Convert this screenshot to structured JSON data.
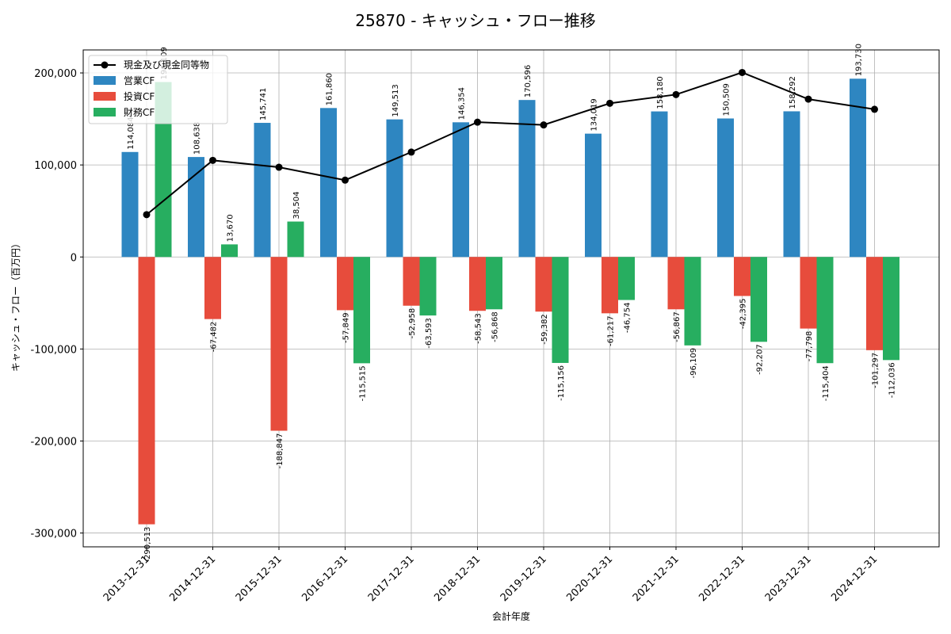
{
  "chart_data": {
    "type": "bar",
    "title": "25870 - キャッシュ・フロー推移",
    "xlabel": "会計年度",
    "ylabel": "キャッシュ・フロー（百万円）",
    "ylim": [
      -315000,
      225000
    ],
    "yticks": [
      -300000,
      -200000,
      -100000,
      0,
      100000,
      200000
    ],
    "ytick_labels": [
      "-300,000",
      "-200,000",
      "-100,000",
      "0",
      "100,000",
      "200,000"
    ],
    "grid": true,
    "legend_position": "top-left",
    "categories": [
      "2013-12-31",
      "2014-12-31",
      "2015-12-31",
      "2016-12-31",
      "2017-12-31",
      "2018-12-31",
      "2019-12-31",
      "2020-12-31",
      "2021-12-31",
      "2022-12-31",
      "2023-12-31",
      "2024-12-31"
    ],
    "series": [
      {
        "name": "営業CF",
        "kind": "bar",
        "color": "#2e86c1",
        "values": [
          114084,
          108638,
          145741,
          161860,
          149513,
          146354,
          170596,
          134019,
          158180,
          150509,
          158292,
          193730
        ],
        "labels": [
          "114,084",
          "108,638",
          "145,741",
          "161,860",
          "149,513",
          "146,354",
          "170,596",
          "134,019",
          "158,180",
          "150,509",
          "158,292",
          "193,730"
        ]
      },
      {
        "name": "投資CF",
        "kind": "bar",
        "color": "#e74c3c",
        "values": [
          -290513,
          -67482,
          -188847,
          -57849,
          -52958,
          -58543,
          -59382,
          -61217,
          -56867,
          -42395,
          -77798,
          -101297
        ],
        "labels": [
          "-290,513",
          "-67,482",
          "-188,847",
          "-57,849",
          "-52,958",
          "-58,543",
          "-59,382",
          "-61,217",
          "-56,867",
          "-42,395",
          "-77,798",
          "-101,297"
        ]
      },
      {
        "name": "財務CF",
        "kind": "bar",
        "color": "#27ae60",
        "values": [
          190109,
          13670,
          38504,
          -115515,
          -63593,
          -56868,
          -115156,
          -46754,
          -96109,
          -92207,
          -115404,
          -112036
        ],
        "labels": [
          "190,109",
          "13,670",
          "38,504",
          "-115,515",
          "-63,593",
          "-56,868",
          "-115,156",
          "-46,754",
          "-96,109",
          "-92,207",
          "-115,404",
          "-112,036"
        ]
      },
      {
        "name": "現金及び現金同等物",
        "kind": "line",
        "color": "#000000",
        "values": [
          46000,
          105000,
          97500,
          83500,
          114000,
          146500,
          143500,
          167000,
          176500,
          200500,
          171500,
          160500
        ]
      }
    ]
  }
}
